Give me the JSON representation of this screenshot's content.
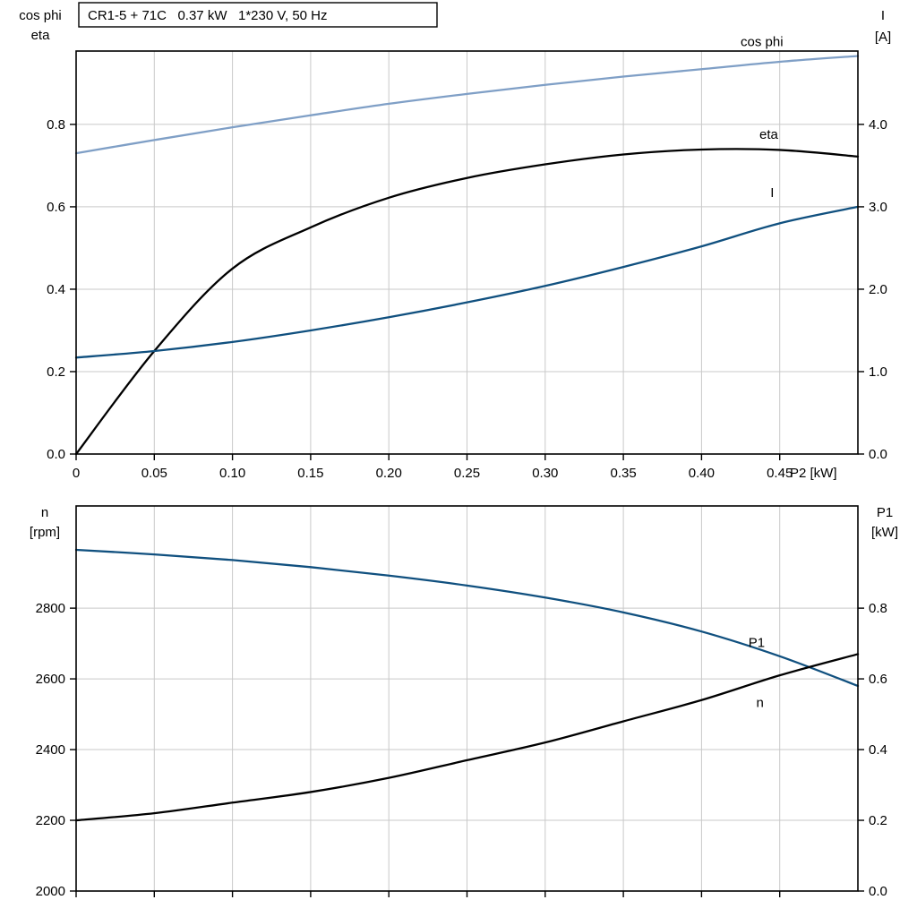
{
  "title_box": "CR1-5 + 71C   0.37 kW   1*230 V, 50 Hz",
  "colors": {
    "light_blue": "#7f9fc6",
    "dark_blue": "#10507f",
    "black": "#000000",
    "grid": "#c9c9c9",
    "axis": "#000000",
    "background": "#ffffff"
  },
  "chart_data": [
    {
      "type": "line",
      "name": "electrical-performance",
      "title": "CR1-5 + 71C   0.37 kW   1*230 V, 50 Hz",
      "x": [
        0,
        0.05,
        0.1,
        0.15,
        0.2,
        0.25,
        0.3,
        0.35,
        0.4,
        0.45,
        0.5
      ],
      "x_axis": {
        "label": "P2 [kW]",
        "min": 0,
        "max": 0.5,
        "ticks": [
          0,
          0.05,
          0.1,
          0.15,
          0.2,
          0.25,
          0.3,
          0.35,
          0.4,
          0.45
        ],
        "tick_labels": [
          "0",
          "0.05",
          "0.10",
          "0.15",
          "0.20",
          "0.25",
          "0.30",
          "0.35",
          "0.40",
          "0.45"
        ],
        "show_labels": true
      },
      "left_axis": {
        "corner_label": [
          "cos phi",
          "eta"
        ],
        "min": 0,
        "max": 0.978,
        "ticks": [
          0,
          0.2,
          0.4,
          0.6,
          0.8
        ],
        "tick_labels": [
          "0.0",
          "0.2",
          "0.4",
          "0.6",
          "0.8"
        ]
      },
      "right_axis": {
        "corner_label": [
          "I",
          "[A]"
        ],
        "min": 0,
        "max": 4.89,
        "ticks": [
          0,
          1,
          2,
          3,
          4
        ],
        "tick_labels": [
          "0.0",
          "1.0",
          "2.0",
          "3.0",
          "4.0"
        ]
      },
      "series": [
        {
          "name": "cos phi",
          "axis": "left",
          "color": "light_blue",
          "values": [
            0.73,
            0.762,
            0.793,
            0.822,
            0.85,
            0.874,
            0.896,
            0.916,
            0.934,
            0.952,
            0.966
          ],
          "label": {
            "text": "cos phi",
            "x": 0.425,
            "y": 0.99
          }
        },
        {
          "name": "eta",
          "axis": "left",
          "color": "black",
          "values": [
            0,
            0.25,
            0.45,
            0.55,
            0.622,
            0.67,
            0.703,
            0.727,
            0.739,
            0.738,
            0.722
          ],
          "label": {
            "text": "eta",
            "x": 0.437,
            "y": 0.765
          }
        },
        {
          "name": "I",
          "axis": "right",
          "color": "dark_blue",
          "values": [
            1.17,
            1.25,
            1.36,
            1.5,
            1.66,
            1.84,
            2.04,
            2.27,
            2.52,
            2.8,
            3.0
          ],
          "label": {
            "text": "I",
            "x": 0.444,
            "y": 3.12
          }
        }
      ]
    },
    {
      "type": "line",
      "name": "speed-and-input-power",
      "x": [
        0,
        0.05,
        0.1,
        0.15,
        0.2,
        0.25,
        0.3,
        0.35,
        0.4,
        0.45,
        0.5
      ],
      "x_axis": {
        "label": "",
        "min": 0,
        "max": 0.5,
        "ticks": [
          0,
          0.05,
          0.1,
          0.15,
          0.2,
          0.25,
          0.3,
          0.35,
          0.4,
          0.45
        ],
        "tick_labels": [],
        "show_labels": false
      },
      "left_axis": {
        "corner_label": [
          "n",
          "[rpm]"
        ],
        "min": 2000,
        "max": 3089,
        "ticks": [
          2000,
          2200,
          2400,
          2600,
          2800
        ],
        "tick_labels": [
          "2000",
          "2200",
          "2400",
          "2600",
          "2800"
        ]
      },
      "right_axis": {
        "corner_label": [
          "P1",
          "[kW]"
        ],
        "min": 0,
        "max": 1.089,
        "ticks": [
          0,
          0.2,
          0.4,
          0.6,
          0.8
        ],
        "tick_labels": [
          "0.0",
          "0.2",
          "0.4",
          "0.6",
          "0.8"
        ]
      },
      "series": [
        {
          "name": "n",
          "axis": "left",
          "color": "dark_blue",
          "values": [
            2965,
            2952,
            2936,
            2916,
            2892,
            2864,
            2830,
            2788,
            2734,
            2664,
            2580
          ],
          "label": {
            "text": "n",
            "x": 0.435,
            "y": 2520
          }
        },
        {
          "name": "P1",
          "axis": "right",
          "color": "black",
          "values": [
            0.2,
            0.22,
            0.25,
            0.28,
            0.32,
            0.37,
            0.42,
            0.48,
            0.54,
            0.61,
            0.67
          ],
          "label": {
            "text": "P1",
            "x": 0.43,
            "y": 0.69
          }
        }
      ]
    }
  ]
}
